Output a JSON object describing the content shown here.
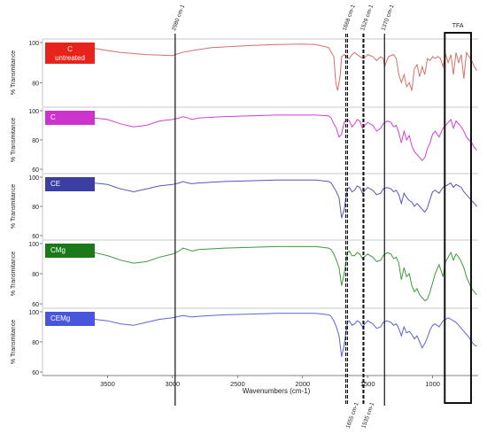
{
  "chart_data": {
    "type": "line",
    "xlabel": "Wavenumbers (cm-1)",
    "ylabel": "% Transmitance",
    "x_reversed": true,
    "xlim": [
      4000,
      650
    ],
    "x_ticks": [
      "3500",
      "3000",
      "2500",
      "2000",
      "1500",
      "1000"
    ],
    "x_tick_values": [
      3500,
      3000,
      2500,
      2000,
      1500,
      1000
    ],
    "grid": false,
    "panels": [
      {
        "name": "C untreated",
        "label_lines": [
          "C",
          "untreated"
        ],
        "label_bg": "#e8231c",
        "color": "#d4716a",
        "ylim": [
          70,
          100
        ],
        "y_ticks": [
          "100",
          "80"
        ],
        "y_tick_values": [
          100,
          80
        ],
        "x": [
          3950,
          3800,
          3600,
          3400,
          3200,
          3000,
          2930,
          2850,
          2700,
          2400,
          2200,
          2000,
          1900,
          1800,
          1760,
          1745,
          1730,
          1710,
          1700,
          1680,
          1660,
          1640,
          1620,
          1600,
          1560,
          1530,
          1500,
          1460,
          1430,
          1400,
          1380,
          1370,
          1340,
          1300,
          1280,
          1260,
          1240,
          1220,
          1200,
          1180,
          1160,
          1140,
          1120,
          1100,
          1080,
          1060,
          1040,
          1020,
          1000,
          980,
          960,
          940,
          920,
          900,
          880,
          860,
          840,
          820,
          800,
          780,
          760,
          740,
          720,
          700,
          680,
          660
        ],
        "y": [
          99,
          98,
          97,
          95,
          94,
          93.5,
          95,
          96,
          97.5,
          98.5,
          99,
          99.2,
          99,
          97.5,
          93,
          80,
          76,
          84,
          93,
          94,
          93,
          92,
          94,
          95,
          93,
          92,
          94,
          93,
          91,
          93,
          92,
          88,
          93,
          94,
          92,
          84,
          80,
          84,
          78,
          80,
          76,
          87,
          89,
          83,
          88,
          84,
          92,
          91,
          93,
          92,
          93,
          92,
          88,
          94,
          90,
          94,
          84,
          95,
          90,
          94,
          82,
          95,
          93,
          91,
          88,
          86
        ]
      },
      {
        "name": "C",
        "label_lines": [
          "C"
        ],
        "label_bg": "#cc33cc",
        "color": "#d43fd4",
        "ylim": [
          60,
          100
        ],
        "y_ticks": [
          "100",
          "80",
          "60"
        ],
        "y_tick_values": [
          100,
          80,
          60
        ],
        "x": [
          3950,
          3800,
          3600,
          3500,
          3400,
          3300,
          3200,
          3100,
          3000,
          2950,
          2920,
          2880,
          2850,
          2800,
          2600,
          2400,
          2200,
          2000,
          1900,
          1800,
          1780,
          1760,
          1740,
          1720,
          1700,
          1680,
          1655,
          1640,
          1620,
          1600,
          1580,
          1560,
          1540,
          1500,
          1460,
          1430,
          1400,
          1380,
          1350,
          1320,
          1300,
          1280,
          1260,
          1240,
          1220,
          1200,
          1180,
          1160,
          1140,
          1120,
          1100,
          1080,
          1060,
          1040,
          1020,
          1000,
          980,
          950,
          920,
          900,
          880,
          860,
          840,
          820,
          800,
          780,
          760,
          740,
          720,
          700,
          680,
          660
        ],
        "y": [
          97,
          96,
          95,
          94,
          91,
          89,
          90,
          93,
          94,
          95,
          96,
          95,
          94,
          95,
          96,
          96.5,
          97,
          97,
          97,
          96.5,
          95,
          91,
          88,
          82,
          84,
          92,
          94,
          93,
          89,
          91,
          94,
          93,
          88,
          92,
          90,
          86,
          88,
          91,
          93,
          92,
          89,
          90,
          85,
          78,
          86,
          80,
          83,
          76,
          72,
          70,
          68,
          66,
          68,
          74,
          78,
          84,
          86,
          82,
          88,
          90,
          92,
          94,
          88,
          93,
          91,
          89,
          86,
          82,
          80,
          78,
          75,
          73
        ]
      },
      {
        "name": "CE",
        "label_lines": [
          "CE"
        ],
        "label_bg": "#3b3fa3",
        "color": "#5458b8",
        "ylim": [
          60,
          100
        ],
        "y_ticks": [
          "100",
          "80",
          "60"
        ],
        "y_tick_values": [
          100,
          80,
          60
        ],
        "x": [
          3950,
          3800,
          3600,
          3500,
          3400,
          3300,
          3200,
          3100,
          3000,
          2950,
          2920,
          2880,
          2850,
          2800,
          2600,
          2400,
          2200,
          2000,
          1900,
          1800,
          1780,
          1760,
          1740,
          1720,
          1700,
          1680,
          1655,
          1640,
          1620,
          1600,
          1580,
          1560,
          1540,
          1500,
          1460,
          1430,
          1400,
          1380,
          1350,
          1320,
          1300,
          1280,
          1260,
          1240,
          1220,
          1200,
          1180,
          1160,
          1140,
          1120,
          1100,
          1080,
          1060,
          1040,
          1020,
          1000,
          980,
          950,
          920,
          900,
          880,
          860,
          840,
          820,
          800,
          780,
          760,
          740,
          720,
          700,
          680,
          660
        ],
        "y": [
          98,
          97,
          96,
          95,
          92,
          90,
          92,
          94,
          95,
          96,
          97,
          96,
          95.5,
          96,
          97,
          97.5,
          98,
          98,
          98,
          97,
          96,
          93,
          90,
          86,
          72,
          78,
          92,
          93,
          90,
          91,
          94,
          93,
          89,
          93,
          91,
          88,
          89,
          92,
          93,
          92,
          90,
          91,
          88,
          82,
          89,
          86,
          84,
          83,
          80,
          82,
          80,
          78,
          76,
          79,
          85,
          90,
          91,
          89,
          93,
          94,
          95,
          96,
          93,
          95,
          94,
          93,
          90,
          88,
          86,
          84,
          82,
          80
        ]
      },
      {
        "name": "CMg",
        "label_lines": [
          "CMg"
        ],
        "label_bg": "#1a7a1a",
        "color": "#3d9a3d",
        "ylim": [
          60,
          100
        ],
        "y_ticks": [
          "100",
          "80",
          "60"
        ],
        "y_tick_values": [
          100,
          80,
          60
        ],
        "x": [
          3950,
          3800,
          3600,
          3500,
          3400,
          3300,
          3200,
          3100,
          3000,
          2950,
          2920,
          2880,
          2850,
          2800,
          2600,
          2400,
          2200,
          2000,
          1900,
          1800,
          1780,
          1760,
          1740,
          1720,
          1700,
          1680,
          1655,
          1640,
          1620,
          1600,
          1580,
          1560,
          1540,
          1500,
          1460,
          1430,
          1400,
          1380,
          1350,
          1320,
          1300,
          1280,
          1260,
          1240,
          1220,
          1200,
          1180,
          1160,
          1140,
          1120,
          1100,
          1080,
          1060,
          1040,
          1020,
          1000,
          980,
          950,
          920,
          900,
          880,
          860,
          840,
          820,
          800,
          780,
          760,
          740,
          720,
          700,
          680,
          660
        ],
        "y": [
          98,
          96,
          94,
          92,
          89,
          87,
          88,
          91,
          93,
          95,
          97,
          96,
          95,
          96,
          97,
          97.5,
          98,
          98,
          98,
          97,
          96,
          93,
          89,
          84,
          72,
          80,
          94,
          95,
          92,
          92,
          94,
          93,
          90,
          93,
          91,
          88,
          89,
          92,
          94,
          93,
          90,
          91,
          87,
          76,
          84,
          78,
          80,
          72,
          68,
          70,
          66,
          64,
          62,
          63,
          68,
          74,
          80,
          86,
          78,
          88,
          91,
          94,
          89,
          93,
          91,
          88,
          84,
          78,
          74,
          70,
          68,
          66
        ]
      },
      {
        "name": "CEMg",
        "label_lines": [
          "CEMg"
        ],
        "label_bg": "#4a55dd",
        "color": "#5a63d6",
        "ylim": [
          60,
          100
        ],
        "y_ticks": [
          "100",
          "80",
          "60"
        ],
        "y_tick_values": [
          100,
          80,
          60
        ],
        "x": [
          3950,
          3800,
          3600,
          3500,
          3400,
          3300,
          3200,
          3100,
          3000,
          2950,
          2920,
          2880,
          2850,
          2800,
          2600,
          2400,
          2200,
          2000,
          1900,
          1800,
          1780,
          1760,
          1740,
          1720,
          1700,
          1680,
          1655,
          1640,
          1620,
          1600,
          1580,
          1560,
          1540,
          1500,
          1460,
          1430,
          1400,
          1380,
          1350,
          1320,
          1300,
          1280,
          1260,
          1240,
          1220,
          1200,
          1180,
          1160,
          1140,
          1120,
          1100,
          1080,
          1060,
          1040,
          1020,
          1000,
          980,
          950,
          920,
          900,
          880,
          860,
          840,
          820,
          800,
          780,
          760,
          740,
          720,
          700,
          680,
          660
        ],
        "y": [
          98,
          97,
          95,
          94,
          92,
          91,
          93,
          95,
          96,
          97,
          97.5,
          97,
          96.5,
          97,
          98,
          98.5,
          99,
          99,
          99,
          98,
          97,
          94,
          90,
          84,
          70,
          78,
          93,
          94,
          91,
          92,
          94,
          93,
          90,
          94,
          92,
          89,
          90,
          93,
          94,
          93,
          91,
          92,
          89,
          84,
          90,
          86,
          87,
          85,
          82,
          84,
          80,
          76,
          79,
          83,
          88,
          91,
          92,
          90,
          94,
          95,
          96,
          95,
          94,
          93,
          91,
          89,
          87,
          85,
          83,
          80,
          78,
          77
        ]
      }
    ],
    "annotations": [
      {
        "label": "2980 cm-1",
        "x": 2980,
        "style": "solid",
        "label_pos": "top"
      },
      {
        "label": "1668 cm-1",
        "x": 1668,
        "style": "dashed",
        "label_pos": "top"
      },
      {
        "label": "1529 cm-1",
        "x": 1529,
        "style": "dashed",
        "label_pos": "top"
      },
      {
        "label": "1370 cm-1",
        "x": 1370,
        "style": "solid",
        "label_pos": "top"
      },
      {
        "label": "1655 cm-1",
        "x": 1655,
        "style": "dashed",
        "label_pos": "bottom"
      },
      {
        "label": "1535 cm-1",
        "x": 1535,
        "style": "dashed",
        "label_pos": "bottom"
      }
    ],
    "region": {
      "label": "TFA",
      "x_from": 900,
      "x_to": 650
    }
  }
}
